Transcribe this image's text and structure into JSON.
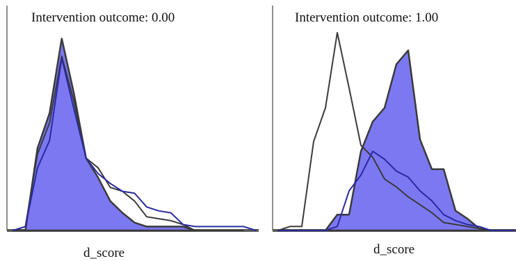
{
  "colors": {
    "fill": "#7c78f2",
    "inner_line": "#2a2aa0",
    "outline": "#3a3a3a",
    "axis": "#8f8f8f"
  },
  "chart_data": [
    {
      "type": "area",
      "title": "Intervention outcome: 0.00",
      "xlabel": "d_score",
      "ylabel": "",
      "grid": false,
      "xlim": [
        0,
        20
      ],
      "ylim": [
        0,
        100
      ],
      "series": [
        {
          "role": "filled",
          "x": [
            0,
            1,
            2,
            3,
            4,
            5,
            6,
            7,
            8,
            9,
            10,
            11,
            12,
            13,
            14,
            15
          ],
          "values": [
            0,
            0,
            42,
            60,
            98,
            70,
            37,
            27,
            15,
            9,
            4,
            2,
            2,
            2,
            2,
            0
          ]
        },
        {
          "role": "outline",
          "x": [
            0,
            1,
            2,
            3,
            4,
            5,
            6,
            7,
            8,
            9,
            10,
            11,
            12,
            13,
            14,
            15,
            16,
            17,
            18,
            19
          ],
          "values": [
            0,
            2,
            39,
            55,
            89,
            66,
            37,
            32,
            22,
            20,
            15,
            7,
            6,
            5,
            3,
            0,
            0,
            0,
            0,
            0
          ]
        },
        {
          "role": "inner",
          "x": [
            0,
            1,
            2,
            3,
            4,
            5,
            6,
            7,
            8,
            9,
            10,
            11,
            12,
            13,
            14,
            15,
            16,
            17,
            18,
            19,
            20
          ],
          "values": [
            0,
            2,
            32,
            46,
            88,
            62,
            37,
            29,
            24,
            20,
            19,
            12,
            10,
            9,
            3,
            2,
            2,
            2,
            2,
            2,
            0
          ]
        }
      ]
    },
    {
      "type": "area",
      "title": "Intervention outcome: 1.00",
      "xlabel": "d_score",
      "ylabel": "",
      "grid": false,
      "xlim": [
        0,
        20
      ],
      "ylim": [
        0,
        100
      ],
      "series": [
        {
          "role": "filled",
          "x": [
            0,
            1,
            2,
            3,
            4,
            5,
            6,
            7,
            8,
            9,
            10,
            11,
            12,
            13,
            14,
            15,
            16,
            17,
            18,
            19,
            20
          ],
          "values": [
            0,
            0,
            0,
            0,
            0,
            8,
            8,
            40,
            55,
            62,
            84,
            91,
            46,
            31,
            31,
            10,
            6,
            1,
            0,
            0,
            0
          ]
        },
        {
          "role": "outline",
          "x": [
            0,
            1,
            2,
            3,
            4,
            5,
            6,
            7,
            8,
            9,
            10,
            11,
            12,
            13,
            14,
            15,
            16,
            17,
            18,
            19,
            20
          ],
          "values": [
            0,
            2,
            2,
            45,
            62,
            100,
            72,
            43,
            37,
            26,
            22,
            17,
            13,
            9,
            4,
            3,
            2,
            1,
            0,
            0,
            0
          ]
        },
        {
          "role": "inner",
          "x": [
            0,
            1,
            2,
            3,
            4,
            5,
            6,
            7,
            8,
            9,
            10,
            11,
            12,
            13,
            14,
            15,
            16,
            17,
            18,
            19,
            20
          ],
          "values": [
            0,
            0,
            0,
            0,
            0,
            2,
            20,
            28,
            40,
            36,
            30,
            27,
            20,
            15,
            8,
            5,
            3,
            2,
            0,
            0,
            0
          ]
        }
      ]
    }
  ]
}
